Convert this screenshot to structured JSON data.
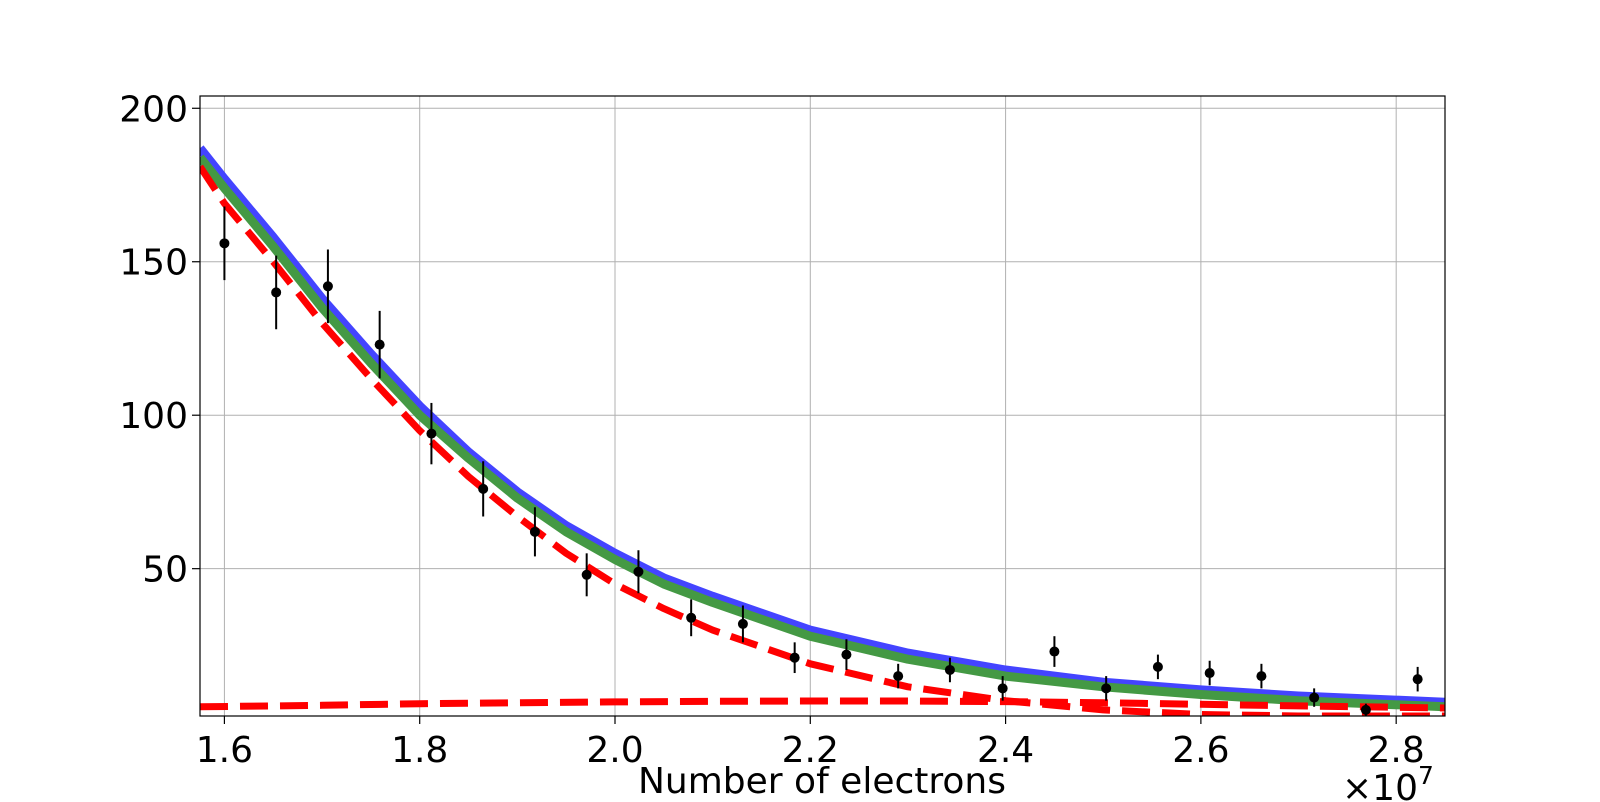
{
  "chart_data": {
    "type": "scatter",
    "title": "",
    "xlabel": "Number of electrons",
    "ylabel": "",
    "x_offset_label": {
      "base": "×10",
      "exponent": "7"
    },
    "xlim": [
      1.575,
      2.85
    ],
    "ylim": [
      2,
      204
    ],
    "grid": true,
    "x_ticks": [
      {
        "value": 1.6,
        "label": "1.6"
      },
      {
        "value": 1.8,
        "label": "1.8"
      },
      {
        "value": 2.0,
        "label": "2.0"
      },
      {
        "value": 2.2,
        "label": "2.2"
      },
      {
        "value": 2.4,
        "label": "2.4"
      },
      {
        "value": 2.6,
        "label": "2.6"
      },
      {
        "value": 2.8,
        "label": "2.8"
      }
    ],
    "y_ticks": [
      {
        "value": 50,
        "label": "50"
      },
      {
        "value": 100,
        "label": "100"
      },
      {
        "value": 150,
        "label": "150"
      },
      {
        "value": 200,
        "label": "200"
      }
    ],
    "points": {
      "color": "#000000",
      "x": [
        1.6,
        1.653,
        1.706,
        1.759,
        1.812,
        1.865,
        1.918,
        1.971,
        2.024,
        2.078,
        2.131,
        2.184,
        2.237,
        2.29,
        2.343,
        2.397,
        2.45,
        2.503,
        2.556,
        2.609,
        2.662,
        2.716,
        2.769,
        2.822
      ],
      "y": [
        156,
        140,
        142,
        123,
        94,
        76,
        62,
        48,
        49,
        34,
        32,
        21,
        22,
        15,
        17,
        11,
        23,
        11,
        18,
        16,
        15,
        8,
        4,
        14
      ],
      "err": [
        12,
        12,
        12,
        11,
        10,
        9,
        8,
        7,
        7,
        6,
        6,
        5,
        5,
        4,
        4,
        4,
        5,
        4,
        4,
        4,
        4,
        3,
        2,
        4
      ]
    },
    "series": [
      {
        "style": "solid",
        "color": "#4444ff",
        "x": [
          1.575,
          1.6,
          1.65,
          1.7,
          1.75,
          1.8,
          1.85,
          1.9,
          1.95,
          2.0,
          2.05,
          2.1,
          2.2,
          2.3,
          2.4,
          2.5,
          2.6,
          2.7,
          2.85
        ],
        "y": [
          187,
          177,
          158,
          138,
          120,
          103,
          88,
          75,
          64,
          55,
          47,
          41,
          30,
          22.5,
          17,
          13,
          10.5,
          8.5,
          6.5
        ]
      },
      {
        "style": "solid",
        "color": "#449944",
        "x": [
          1.575,
          1.6,
          1.65,
          1.7,
          1.75,
          1.8,
          1.85,
          1.9,
          1.95,
          2.0,
          2.05,
          2.1,
          2.2,
          2.3,
          2.4,
          2.5,
          2.6,
          2.7,
          2.85
        ],
        "y": [
          184,
          174,
          155,
          135,
          117,
          100,
          86,
          73,
          62,
          53,
          45,
          39,
          28,
          20.5,
          15,
          11.5,
          9,
          7,
          5
        ]
      },
      {
        "style": "dashed",
        "color": "#ff0000",
        "x": [
          1.575,
          1.6,
          1.65,
          1.7,
          1.75,
          1.8,
          1.85,
          1.9,
          1.95,
          2.0,
          2.05,
          2.1,
          2.2,
          2.3,
          2.4,
          2.5,
          2.6,
          2.7,
          2.85
        ],
        "y": [
          181,
          169,
          150,
          130,
          112,
          95,
          80,
          67,
          55,
          45,
          37,
          30,
          19,
          11.5,
          7,
          4,
          2.5,
          2,
          2
        ]
      },
      {
        "style": "dashed",
        "color": "#ff0000",
        "x": [
          1.575,
          1.7,
          1.8,
          1.9,
          2.0,
          2.1,
          2.2,
          2.3,
          2.4,
          2.5,
          2.6,
          2.7,
          2.85
        ],
        "y": [
          5,
          5.5,
          6,
          6.3,
          6.6,
          6.8,
          6.9,
          6.9,
          6.7,
          6.3,
          5.8,
          5.3,
          4.6
        ]
      }
    ]
  }
}
